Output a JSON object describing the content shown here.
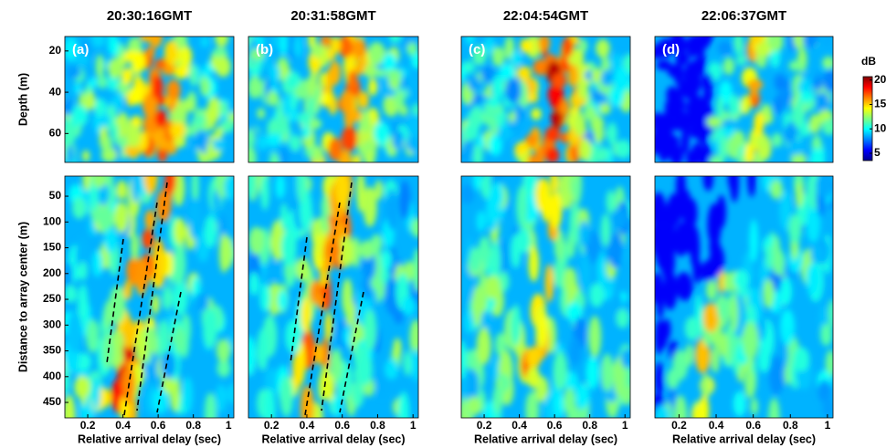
{
  "chart_data": [
    {
      "type": "heatmap",
      "title": "20:30:16GMT",
      "panel_label": "(a)",
      "ylabel": "Depth (m)",
      "xlim": [
        0.07,
        1.03
      ],
      "ylim": [
        74,
        13
      ],
      "yticks": [
        20,
        40,
        60
      ]
    },
    {
      "type": "heatmap",
      "title": "20:31:58GMT",
      "panel_label": "(b)",
      "xlim": [
        0.07,
        1.03
      ],
      "ylim": [
        74,
        13
      ]
    },
    {
      "type": "heatmap",
      "title": "22:04:54GMT",
      "panel_label": "(c)",
      "xlim": [
        0.07,
        1.03
      ],
      "ylim": [
        74,
        13
      ]
    },
    {
      "type": "heatmap",
      "title": "22:06:37GMT",
      "panel_label": "(d)",
      "xlim": [
        0.07,
        1.03
      ],
      "ylim": [
        74,
        13
      ]
    },
    {
      "type": "heatmap",
      "ylabel": "Distance to array center (m)",
      "xlabel": "Relative arrival delay (sec)",
      "xlim": [
        0.07,
        1.03
      ],
      "xticks": [
        0.2,
        0.4,
        0.6,
        0.8,
        1
      ],
      "ylim": [
        480,
        11
      ],
      "yticks": [
        50,
        100,
        150,
        200,
        250,
        300,
        350,
        400,
        450
      ]
    },
    {
      "type": "heatmap",
      "xlabel": "Relative arrival delay (sec)",
      "xlim": [
        0.07,
        1.03
      ],
      "xticks": [
        0.2,
        0.4,
        0.6,
        0.8,
        1
      ],
      "ylim": [
        480,
        11
      ]
    },
    {
      "type": "heatmap",
      "xlabel": "Relative arrival delay (sec)",
      "xlim": [
        0.07,
        1.03
      ],
      "xticks": [
        0.2,
        0.4,
        0.6,
        0.8,
        1
      ],
      "ylim": [
        480,
        11
      ]
    },
    {
      "type": "heatmap",
      "xlabel": "Relative arrival delay (sec)",
      "xlim": [
        0.07,
        1.03
      ],
      "xticks": [
        0.2,
        0.4,
        0.6,
        0.8,
        1
      ],
      "ylim": [
        480,
        11
      ]
    },
    {
      "type": "colorbar",
      "title": "dB",
      "lim": [
        3.5,
        20.7
      ],
      "ticks": [
        5,
        10,
        15,
        20
      ]
    }
  ]
}
